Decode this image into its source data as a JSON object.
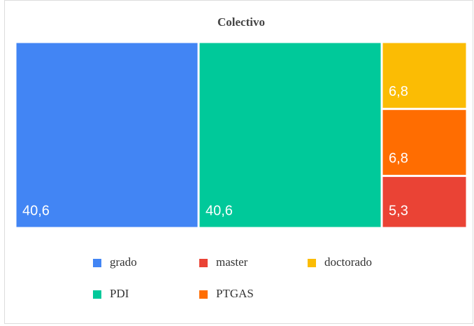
{
  "chart_data": {
    "type": "treemap",
    "title": "Colectivo",
    "categories": [
      "grado",
      "PDI",
      "doctorado",
      "PTGAS",
      "master"
    ],
    "values": [
      40.6,
      40.6,
      6.8,
      6.8,
      5.3
    ],
    "value_labels": [
      "40,6",
      "40,6",
      "6,8",
      "6,8",
      "5,3"
    ],
    "colors": [
      "#4285f4",
      "#00c99a",
      "#fbbc04",
      "#ff6d01",
      "#ea4335"
    ],
    "legend": "bottom"
  }
}
